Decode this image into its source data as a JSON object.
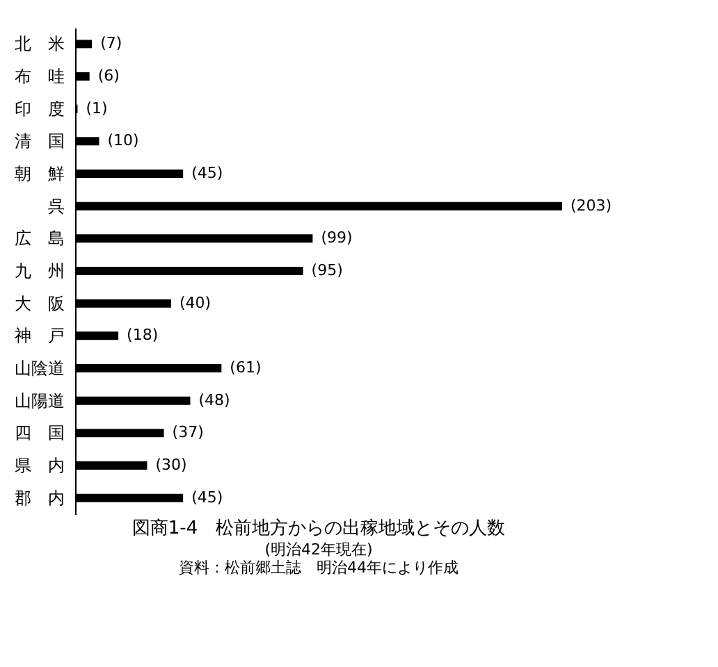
{
  "chart_data": {
    "type": "bar",
    "orientation": "horizontal",
    "title": "図商1-4　松前地方からの出稼地域とその人数",
    "subtitle": "(明治42年現在)",
    "annotations": [
      "資料：松前郷土誌　明治44年により作成"
    ],
    "categories": [
      "北　米",
      "布　哇",
      "印　度",
      "清　国",
      "朝　鮮",
      "呉",
      "広　島",
      "九　州",
      "大　阪",
      "神　戸",
      "山陰道",
      "山陽道",
      "四　国",
      "県　内",
      "郡　内"
    ],
    "values": [
      7,
      6,
      1,
      10,
      45,
      203,
      99,
      95,
      40,
      18,
      61,
      48,
      37,
      30,
      45
    ],
    "value_labels": [
      "(7)",
      "(6)",
      "(1)",
      "(10)",
      "(45)",
      "(203)",
      "(99)",
      "(95)",
      "(40)",
      "(18)",
      "(61)",
      "(48)",
      "(37)",
      "(30)",
      "(45)"
    ],
    "color": "#000000",
    "tick_labels": "y",
    "grid": false
  }
}
